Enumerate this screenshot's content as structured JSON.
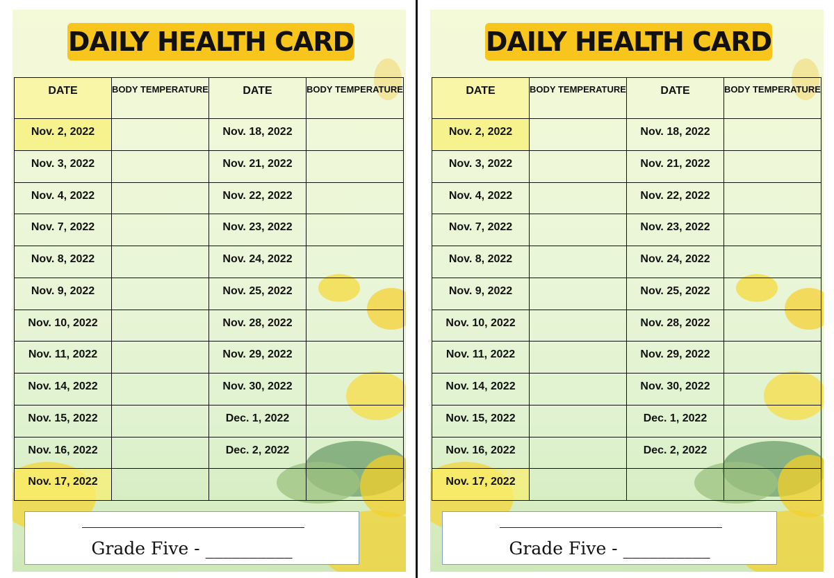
{
  "cards": [
    {
      "title": "DAILY HEALTH CARD",
      "headers": [
        "DATE",
        "BODY TEMPERATURE",
        "DATE",
        "BODY TEMPERATURE"
      ],
      "left_dates": [
        "Nov. 2, 2022",
        "Nov. 3, 2022",
        "Nov. 4, 2022",
        "Nov. 7, 2022",
        "Nov. 8, 2022",
        "Nov. 9, 2022",
        "Nov. 10, 2022",
        "Nov. 11, 2022",
        "Nov. 14, 2022",
        "Nov. 15, 2022",
        "Nov. 16, 2022",
        "Nov. 17, 2022"
      ],
      "right_dates": [
        "Nov. 18, 2022",
        "Nov. 21, 2022",
        "Nov. 22, 2022",
        "Nov. 23, 2022",
        "Nov. 24, 2022",
        "Nov. 25, 2022",
        "Nov. 28, 2022",
        "Nov. 29, 2022",
        "Nov. 30, 2022",
        "Dec. 1, 2022",
        "Dec. 2, 2022"
      ],
      "footer": "Grade Five - __________"
    },
    {
      "title": "DAILY HEALTH CARD",
      "headers": [
        "DATE",
        "BODY TEMPERATURE",
        "DATE",
        "BODY TEMPERATURE"
      ],
      "left_dates": [
        "Nov. 2, 2022",
        "Nov. 3, 2022",
        "Nov. 4, 2022",
        "Nov. 7, 2022",
        "Nov. 8, 2022",
        "Nov. 9, 2022",
        "Nov. 10, 2022",
        "Nov. 11, 2022",
        "Nov. 14, 2022",
        "Nov. 15, 2022",
        "Nov. 16, 2022",
        "Nov. 17, 2022"
      ],
      "right_dates": [
        "Nov. 18, 2022",
        "Nov. 21, 2022",
        "Nov. 22, 2022",
        "Nov. 23, 2022",
        "Nov. 24, 2022",
        "Nov. 25, 2022",
        "Nov. 28, 2022",
        "Nov. 29, 2022",
        "Nov. 30, 2022",
        "Dec. 1, 2022",
        "Dec. 2, 2022"
      ],
      "footer": "Grade Five - __________"
    }
  ]
}
